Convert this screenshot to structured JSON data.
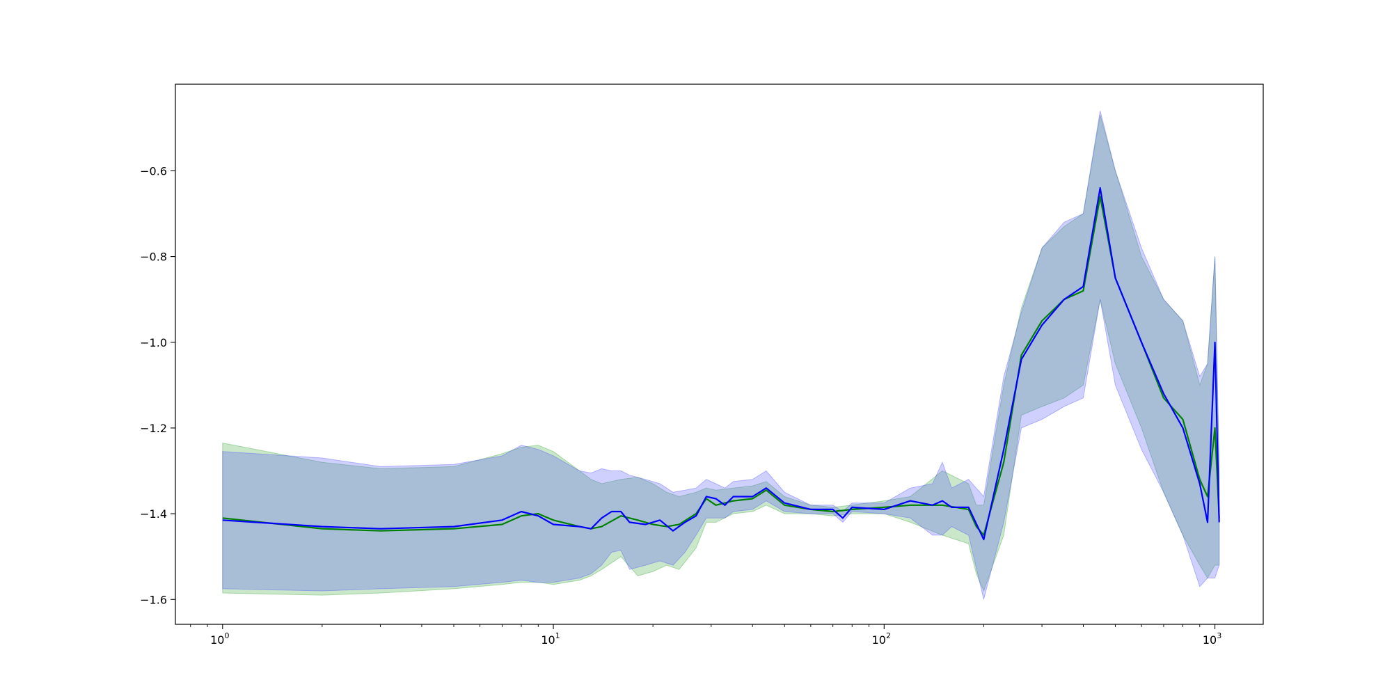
{
  "chart_data": {
    "type": "line",
    "title": "",
    "xlabel": "",
    "ylabel": "",
    "xscale": "log",
    "xlim": [
      0.72,
      1400
    ],
    "ylim": [
      -1.658,
      -0.398
    ],
    "grid": false,
    "legend": "none",
    "x_ticks": [
      {
        "base": "10",
        "exp": "0",
        "value": 1
      },
      {
        "base": "10",
        "exp": "1",
        "value": 10
      },
      {
        "base": "10",
        "exp": "2",
        "value": 100
      },
      {
        "base": "10",
        "exp": "3",
        "value": 1000
      }
    ],
    "y_ticks": [
      {
        "label": "−1.6",
        "value": -1.6
      },
      {
        "label": "−1.4",
        "value": -1.4
      },
      {
        "label": "−1.2",
        "value": -1.2
      },
      {
        "label": "−1.0",
        "value": -1.0
      },
      {
        "label": "−0.8",
        "value": -0.8
      },
      {
        "label": "−0.6",
        "value": -0.6
      }
    ],
    "series": [
      {
        "color": "#008000",
        "band_color": "#2ca02c",
        "points": [
          [
            1,
            -1.41,
            -1.235,
            -1.585
          ],
          [
            2,
            -1.435,
            -1.28,
            -1.59
          ],
          [
            3,
            -1.44,
            -1.295,
            -1.585
          ],
          [
            5,
            -1.435,
            -1.29,
            -1.575
          ],
          [
            7,
            -1.425,
            -1.26,
            -1.565
          ],
          [
            8,
            -1.405,
            -1.245,
            -1.56
          ],
          [
            9,
            -1.4,
            -1.24,
            -1.56
          ],
          [
            10,
            -1.415,
            -1.255,
            -1.565
          ],
          [
            12,
            -1.43,
            -1.3,
            -1.555
          ],
          [
            13,
            -1.435,
            -1.32,
            -1.545
          ],
          [
            14,
            -1.43,
            -1.33,
            -1.53
          ],
          [
            16,
            -1.405,
            -1.32,
            -1.5
          ],
          [
            18,
            -1.415,
            -1.315,
            -1.545
          ],
          [
            20,
            -1.425,
            -1.33,
            -1.535
          ],
          [
            22,
            -1.43,
            -1.35,
            -1.52
          ],
          [
            24,
            -1.425,
            -1.36,
            -1.53
          ],
          [
            27,
            -1.4,
            -1.35,
            -1.48
          ],
          [
            29,
            -1.365,
            -1.34,
            -1.42
          ],
          [
            31,
            -1.38,
            -1.345,
            -1.42
          ],
          [
            35,
            -1.37,
            -1.34,
            -1.4
          ],
          [
            40,
            -1.365,
            -1.335,
            -1.395
          ],
          [
            44,
            -1.345,
            -1.325,
            -1.38
          ],
          [
            50,
            -1.38,
            -1.36,
            -1.4
          ],
          [
            60,
            -1.39,
            -1.38,
            -1.4
          ],
          [
            70,
            -1.395,
            -1.385,
            -1.405
          ],
          [
            80,
            -1.39,
            -1.38,
            -1.4
          ],
          [
            100,
            -1.385,
            -1.37,
            -1.4
          ],
          [
            120,
            -1.38,
            -1.36,
            -1.42
          ],
          [
            150,
            -1.38,
            -1.3,
            -1.45
          ],
          [
            180,
            -1.39,
            -1.33,
            -1.47
          ],
          [
            190,
            -1.43,
            -1.38,
            -1.54
          ],
          [
            200,
            -1.45,
            -1.38,
            -1.58
          ],
          [
            230,
            -1.28,
            -1.1,
            -1.45
          ],
          [
            260,
            -1.03,
            -0.92,
            -1.17
          ],
          [
            300,
            -0.95,
            -0.78,
            -1.15
          ],
          [
            350,
            -0.9,
            -0.73,
            -1.13
          ],
          [
            400,
            -0.88,
            -0.7,
            -1.1
          ],
          [
            450,
            -0.66,
            -0.47,
            -0.9
          ],
          [
            500,
            -0.85,
            -0.6,
            -1.05
          ],
          [
            600,
            -1.0,
            -0.8,
            -1.2
          ],
          [
            700,
            -1.13,
            -0.9,
            -1.35
          ],
          [
            800,
            -1.18,
            -0.95,
            -1.45
          ],
          [
            900,
            -1.32,
            -1.1,
            -1.52
          ],
          [
            950,
            -1.36,
            -1.05,
            -1.55
          ],
          [
            1000,
            -1.2,
            -0.8,
            -1.52
          ],
          [
            1030,
            -1.41,
            -1.3,
            -1.52
          ]
        ]
      },
      {
        "color": "#0000ff",
        "band_color": "#4444ff",
        "points": [
          [
            1,
            -1.415,
            -1.255,
            -1.575
          ],
          [
            2,
            -1.43,
            -1.27,
            -1.58
          ],
          [
            3,
            -1.435,
            -1.29,
            -1.575
          ],
          [
            5,
            -1.43,
            -1.285,
            -1.57
          ],
          [
            7,
            -1.415,
            -1.265,
            -1.56
          ],
          [
            8,
            -1.395,
            -1.24,
            -1.555
          ],
          [
            9,
            -1.405,
            -1.25,
            -1.56
          ],
          [
            10,
            -1.425,
            -1.265,
            -1.56
          ],
          [
            12,
            -1.43,
            -1.3,
            -1.55
          ],
          [
            13,
            -1.435,
            -1.305,
            -1.54
          ],
          [
            14,
            -1.41,
            -1.295,
            -1.52
          ],
          [
            15,
            -1.395,
            -1.3,
            -1.49
          ],
          [
            16,
            -1.395,
            -1.3,
            -1.485
          ],
          [
            17,
            -1.42,
            -1.31,
            -1.53
          ],
          [
            19,
            -1.425,
            -1.32,
            -1.52
          ],
          [
            21,
            -1.415,
            -1.33,
            -1.51
          ],
          [
            23,
            -1.44,
            -1.35,
            -1.52
          ],
          [
            25,
            -1.42,
            -1.345,
            -1.49
          ],
          [
            27,
            -1.405,
            -1.34,
            -1.45
          ],
          [
            29,
            -1.36,
            -1.32,
            -1.41
          ],
          [
            31,
            -1.365,
            -1.33,
            -1.41
          ],
          [
            33,
            -1.38,
            -1.34,
            -1.41
          ],
          [
            35,
            -1.36,
            -1.325,
            -1.395
          ],
          [
            40,
            -1.36,
            -1.32,
            -1.39
          ],
          [
            44,
            -1.34,
            -1.3,
            -1.37
          ],
          [
            50,
            -1.375,
            -1.35,
            -1.395
          ],
          [
            60,
            -1.39,
            -1.38,
            -1.4
          ],
          [
            70,
            -1.39,
            -1.38,
            -1.4
          ],
          [
            75,
            -1.41,
            -1.395,
            -1.42
          ],
          [
            80,
            -1.385,
            -1.375,
            -1.395
          ],
          [
            100,
            -1.39,
            -1.375,
            -1.4
          ],
          [
            120,
            -1.37,
            -1.34,
            -1.41
          ],
          [
            140,
            -1.38,
            -1.33,
            -1.45
          ],
          [
            150,
            -1.37,
            -1.28,
            -1.45
          ],
          [
            160,
            -1.385,
            -1.34,
            -1.43
          ],
          [
            180,
            -1.385,
            -1.32,
            -1.45
          ],
          [
            200,
            -1.46,
            -1.36,
            -1.6
          ],
          [
            230,
            -1.25,
            -1.08,
            -1.42
          ],
          [
            260,
            -1.04,
            -0.93,
            -1.2
          ],
          [
            300,
            -0.96,
            -0.78,
            -1.18
          ],
          [
            350,
            -0.9,
            -0.72,
            -1.15
          ],
          [
            400,
            -0.87,
            -0.7,
            -1.13
          ],
          [
            450,
            -0.64,
            -0.46,
            -0.9
          ],
          [
            500,
            -0.85,
            -0.6,
            -1.1
          ],
          [
            600,
            -1.0,
            -0.78,
            -1.25
          ],
          [
            700,
            -1.12,
            -0.9,
            -1.35
          ],
          [
            800,
            -1.2,
            -0.95,
            -1.45
          ],
          [
            900,
            -1.33,
            -1.08,
            -1.57
          ],
          [
            950,
            -1.42,
            -1.05,
            -1.55
          ],
          [
            1000,
            -1.0,
            -0.8,
            -1.55
          ],
          [
            1030,
            -1.42,
            -1.3,
            -1.52
          ]
        ]
      }
    ]
  }
}
